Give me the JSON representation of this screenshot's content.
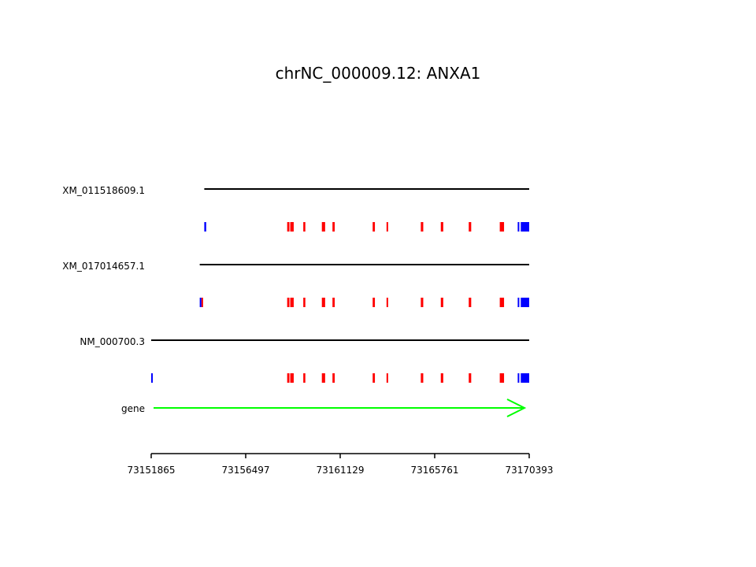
{
  "title": "chrNC_000009.12: ANXA1",
  "colors": {
    "utr": "#0000ff",
    "cds": "#ff0000",
    "intron": "#000000",
    "gene": "#00ff00"
  },
  "axis": {
    "range": [
      73151865,
      73170393
    ],
    "ticks": [
      {
        "value": 73151865,
        "label": "73151865"
      },
      {
        "value": 73156497,
        "label": "73156497"
      },
      {
        "value": 73161129,
        "label": "73161129"
      },
      {
        "value": 73165761,
        "label": "73165761"
      },
      {
        "value": 73170393,
        "label": "73170393"
      }
    ]
  },
  "gene": {
    "label": "gene",
    "start": 73151865,
    "end": 73170393,
    "strand": "+"
  },
  "transcripts": [
    {
      "name": "XM_011518609.1",
      "start": 73154467,
      "end": 73170393,
      "exons": [
        {
          "start": 73154467,
          "end": 73154560,
          "type": "utr"
        },
        {
          "start": 73158530,
          "end": 73158640,
          "type": "cds"
        },
        {
          "start": 73158680,
          "end": 73158850,
          "type": "cds"
        },
        {
          "start": 73159320,
          "end": 73159420,
          "type": "cds"
        },
        {
          "start": 73160230,
          "end": 73160390,
          "type": "cds"
        },
        {
          "start": 73160750,
          "end": 73160860,
          "type": "cds"
        },
        {
          "start": 73162720,
          "end": 73162830,
          "type": "cds"
        },
        {
          "start": 73163400,
          "end": 73163470,
          "type": "cds"
        },
        {
          "start": 73165080,
          "end": 73165200,
          "type": "cds"
        },
        {
          "start": 73166060,
          "end": 73166180,
          "type": "cds"
        },
        {
          "start": 73167430,
          "end": 73167550,
          "type": "cds"
        },
        {
          "start": 73168950,
          "end": 73169160,
          "type": "cds"
        },
        {
          "start": 73169830,
          "end": 73169900,
          "type": "utr"
        },
        {
          "start": 73169980,
          "end": 73170393,
          "type": "utr"
        }
      ]
    },
    {
      "name": "XM_017014657.1",
      "start": 73154244,
      "end": 73170393,
      "exons": [
        {
          "start": 73154244,
          "end": 73154330,
          "type": "utr"
        },
        {
          "start": 73154330,
          "end": 73154380,
          "type": "cds"
        },
        {
          "start": 73158530,
          "end": 73158640,
          "type": "cds"
        },
        {
          "start": 73158680,
          "end": 73158850,
          "type": "cds"
        },
        {
          "start": 73159320,
          "end": 73159420,
          "type": "cds"
        },
        {
          "start": 73160230,
          "end": 73160390,
          "type": "cds"
        },
        {
          "start": 73160750,
          "end": 73160860,
          "type": "cds"
        },
        {
          "start": 73162720,
          "end": 73162830,
          "type": "cds"
        },
        {
          "start": 73163400,
          "end": 73163470,
          "type": "cds"
        },
        {
          "start": 73165080,
          "end": 73165200,
          "type": "cds"
        },
        {
          "start": 73166060,
          "end": 73166180,
          "type": "cds"
        },
        {
          "start": 73167430,
          "end": 73167550,
          "type": "cds"
        },
        {
          "start": 73168950,
          "end": 73169160,
          "type": "cds"
        },
        {
          "start": 73169830,
          "end": 73169900,
          "type": "utr"
        },
        {
          "start": 73169980,
          "end": 73170393,
          "type": "utr"
        }
      ]
    },
    {
      "name": "NM_000700.3",
      "start": 73151865,
      "end": 73170393,
      "exons": [
        {
          "start": 73151865,
          "end": 73151940,
          "type": "utr"
        },
        {
          "start": 73158530,
          "end": 73158640,
          "type": "cds"
        },
        {
          "start": 73158680,
          "end": 73158850,
          "type": "cds"
        },
        {
          "start": 73159320,
          "end": 73159420,
          "type": "cds"
        },
        {
          "start": 73160230,
          "end": 73160390,
          "type": "cds"
        },
        {
          "start": 73160750,
          "end": 73160860,
          "type": "cds"
        },
        {
          "start": 73162720,
          "end": 73162830,
          "type": "cds"
        },
        {
          "start": 73163400,
          "end": 73163470,
          "type": "cds"
        },
        {
          "start": 73165080,
          "end": 73165200,
          "type": "cds"
        },
        {
          "start": 73166060,
          "end": 73166180,
          "type": "cds"
        },
        {
          "start": 73167430,
          "end": 73167550,
          "type": "cds"
        },
        {
          "start": 73168950,
          "end": 73169160,
          "type": "cds"
        },
        {
          "start": 73169830,
          "end": 73169900,
          "type": "utr"
        },
        {
          "start": 73169980,
          "end": 73170393,
          "type": "utr"
        }
      ]
    }
  ]
}
